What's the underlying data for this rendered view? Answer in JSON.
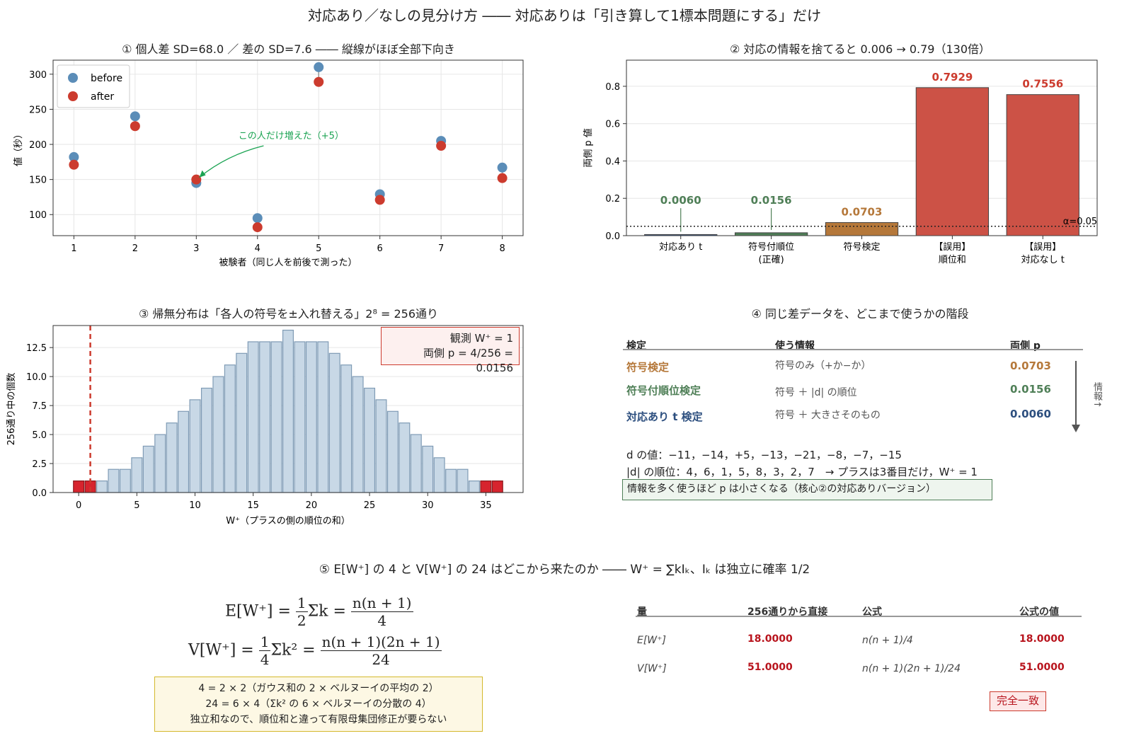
{
  "page": {
    "title": "対応あり／なしの見分け方 ―― 対応ありは「引き算して1標本問題にする」だけ"
  },
  "panel1": {
    "title": "① 個人差 SD=68.0 ／ 差の SD=7.6 ―― 縦線がほぼ全部下向き",
    "annotation": "この人だけ増えた（+5）",
    "colors": {
      "before": "#5b8db8",
      "after": "#cc3b2e",
      "annot": "#1aa352"
    },
    "chart_data": {
      "type": "scatter",
      "xlabel": "被験者（同じ人を前後で測った）",
      "ylabel": "値（秒）",
      "x": [
        1,
        2,
        3,
        4,
        5,
        6,
        7,
        8
      ],
      "xticks": [
        "1",
        "2",
        "3",
        "4",
        "5",
        "6",
        "7",
        "8"
      ],
      "yticks": [
        "100",
        "150",
        "200",
        "250",
        "300"
      ],
      "ylim": [
        70,
        320
      ],
      "legend_position": "top-left",
      "series": [
        {
          "name": "before",
          "values": [
            182,
            240,
            145,
            95,
            310,
            129,
            205,
            167
          ]
        },
        {
          "name": "after",
          "values": [
            171,
            226,
            150,
            82,
            289,
            121,
            198,
            152
          ]
        }
      ]
    }
  },
  "panel2": {
    "title": "② 対応の情報を捨てると 0.006 → 0.79（130倍）",
    "alpha_label": "α=0.05",
    "chart_data": {
      "type": "bar",
      "ylabel": "両側 p 値",
      "categories": [
        "対応あり t",
        "符号付順位\n(正確)",
        "符号検定",
        "【誤用】\n順位和",
        "【誤用】\n対応なし t"
      ],
      "values": [
        0.006,
        0.0156,
        0.0703,
        0.7929,
        0.7556
      ],
      "value_labels": [
        "0.0060",
        "0.0156",
        "0.0703",
        "0.7929",
        "0.7556"
      ],
      "colors": [
        "#2d4f7f",
        "#4f7f57",
        "#b5783a",
        "#cc5246",
        "#cc5246"
      ],
      "label_colors": [
        "#4f7f57",
        "#4f7f57",
        "#b5783a",
        "#cc3b2e",
        "#cc3b2e"
      ],
      "yticks": [
        "0.0",
        "0.2",
        "0.4",
        "0.6",
        "0.8"
      ],
      "ylim": [
        0,
        0.94
      ],
      "alpha": 0.05
    }
  },
  "panel3": {
    "title": "③ 帰無分布は「各人の符号を±入れ替える」2⁸ = 256通り",
    "box_line1": "観測 W⁺ = 1",
    "box_line2": "両側 p = 4/256 = 0.0156",
    "chart_data": {
      "type": "bar",
      "xlabel": "W⁺（プラスの側の順位の和）",
      "ylabel": "256通り中の個数",
      "x": [
        0,
        1,
        2,
        3,
        4,
        5,
        6,
        7,
        8,
        9,
        10,
        11,
        12,
        13,
        14,
        15,
        16,
        17,
        18,
        19,
        20,
        21,
        22,
        23,
        24,
        25,
        26,
        27,
        28,
        29,
        30,
        31,
        32,
        33,
        34,
        35,
        36
      ],
      "values": [
        1,
        1,
        1,
        2,
        2,
        3,
        4,
        5,
        6,
        7,
        8,
        9,
        10,
        11,
        12,
        13,
        13,
        13,
        14,
        13,
        13,
        13,
        12,
        11,
        10,
        9,
        8,
        7,
        6,
        5,
        4,
        3,
        2,
        2,
        1,
        1,
        1
      ],
      "highlight_x": [
        0,
        1,
        35,
        36
      ],
      "observed": 1,
      "xticks": [
        "0",
        "5",
        "10",
        "15",
        "20",
        "25",
        "30",
        "35"
      ],
      "yticks": [
        "0.0",
        "2.5",
        "5.0",
        "7.5",
        "10.0",
        "12.5"
      ],
      "ylim": [
        0,
        14.4
      ],
      "xlim": [
        -2.2,
        38.2
      ]
    }
  },
  "panel4": {
    "title": "④ 同じ差データを、どこまで使うかの階段",
    "headers": [
      "検定",
      "使う情報",
      "両側 p"
    ],
    "rows": [
      {
        "test": "符号検定",
        "info": "符号のみ（+か−か）",
        "p": "0.0703",
        "color": "#b5783a"
      },
      {
        "test": "符号付順位検定",
        "info": "符号 ＋ |d| の順位",
        "p": "0.0156",
        "color": "#4f7f57"
      },
      {
        "test": "対応あり t 検定",
        "info": "符号 ＋ 大きさそのもの",
        "p": "0.0060",
        "color": "#2d4f7f"
      }
    ],
    "arrow_label": "情報↑",
    "d_line": "d の値：−11，−14，+5，−13，−21，−8，−7，−15",
    "rank_line": "|d| の順位：4，6，1，5，8，3，2，7　→ プラスは3番目だけ，W⁺ = 1",
    "note": "情報を多く使うほど p は小さくなる（核心②の対応ありバージョン）"
  },
  "panel5": {
    "title": "⑤ E[W⁺] の 4 と V[W⁺] の 24 はどこから来たのか ―― W⁺ = ∑kIₖ、Iₖ は独立に確率 1/2",
    "formula_e_lhs": "E[W⁺] = ",
    "formula_e_frac1_num": "1",
    "formula_e_frac1_den": "2",
    "formula_e_mid": "Σk = ",
    "formula_e_frac2_num": "n(n + 1)",
    "formula_e_frac2_den": "4",
    "formula_v_lhs": "V[W⁺] = ",
    "formula_v_frac1_num": "1",
    "formula_v_frac1_den": "4",
    "formula_v_mid": "Σk² = ",
    "formula_v_frac2_num": "n(n + 1)(2n + 1)",
    "formula_v_frac2_den": "24",
    "note_lines": [
      "4 = 2 × 2（ガウス和の 2 × ベルヌーイの平均の 2）",
      "24 = 6 × 4（Σk² の 6 × ベルヌーイの分散の 4）",
      "独立和なので、順位和と違って有限母集団修正が要らない"
    ],
    "headers": [
      "量",
      "256通りから直接",
      "公式",
      "公式の値"
    ],
    "rows": [
      {
        "q": "E[W⁺]",
        "direct": "18.0000",
        "formula": "n(n + 1)/4",
        "value": "18.0000"
      },
      {
        "q": "V[W⁺]",
        "direct": "51.0000",
        "formula": "n(n + 1)(2n + 1)/24",
        "value": "51.0000"
      }
    ],
    "match_label": "完全一致"
  }
}
